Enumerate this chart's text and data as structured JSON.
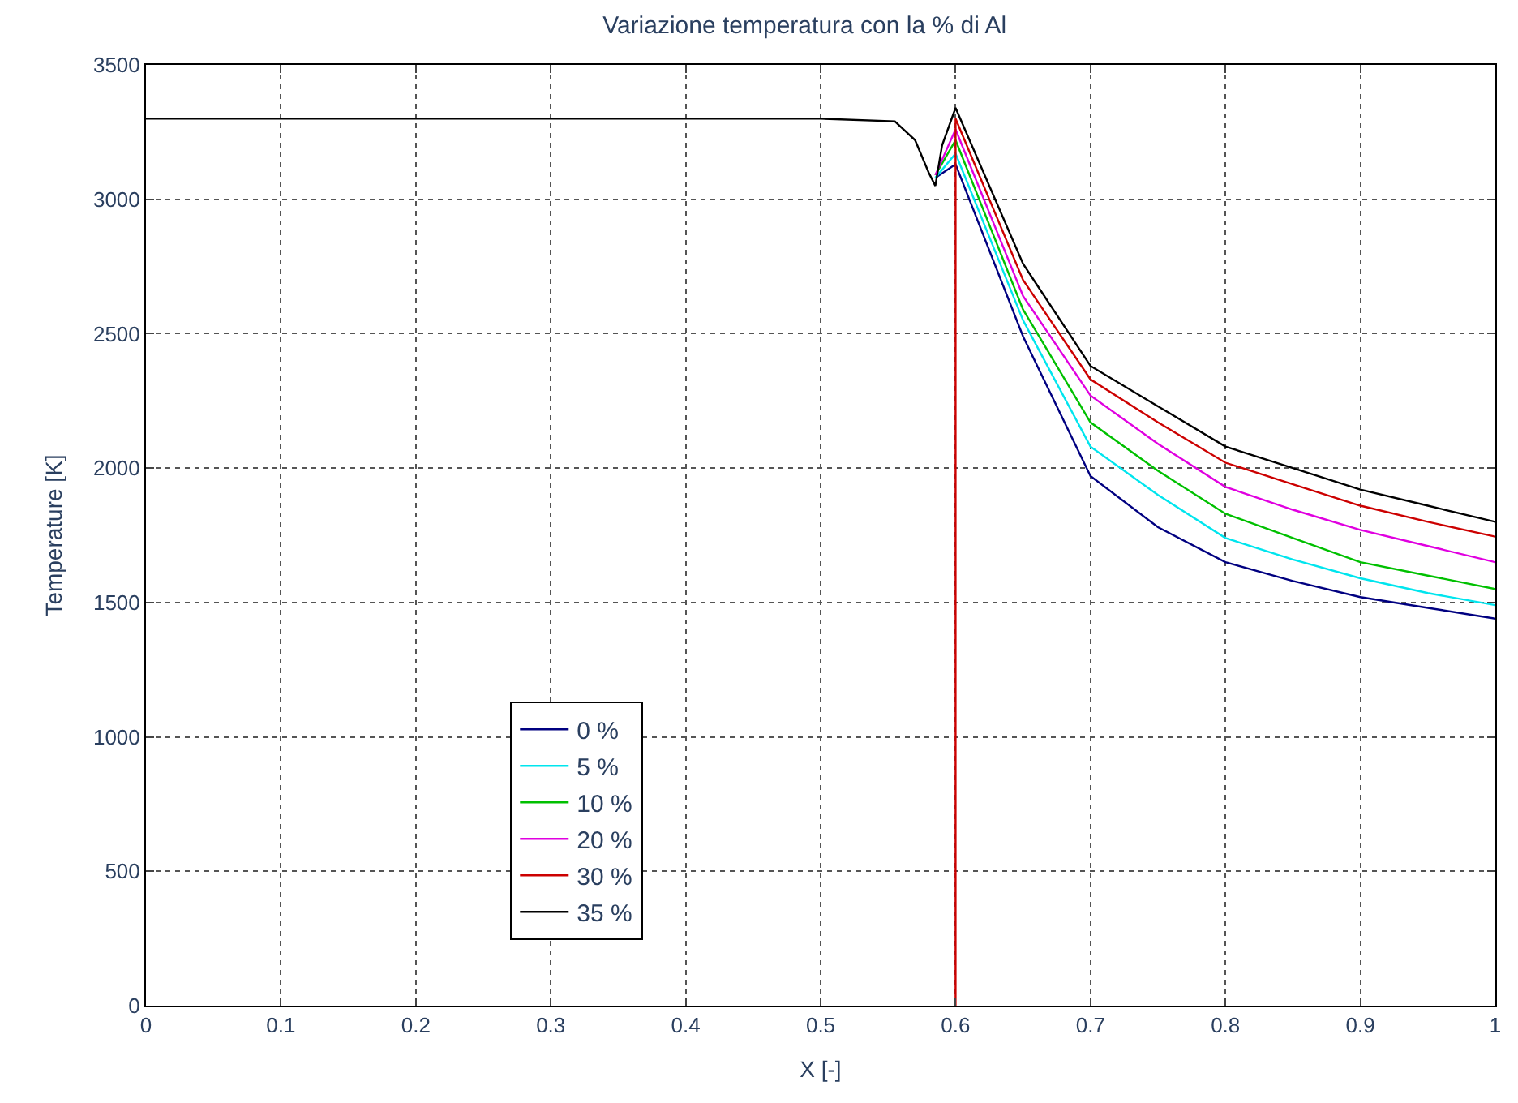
{
  "chart_data": {
    "type": "line",
    "title": "Variazione temperatura con la % di Al",
    "xlabel": "X [-]",
    "ylabel": "Temperature [K]",
    "xlim": [
      0,
      1
    ],
    "ylim": [
      0,
      3500
    ],
    "xticks": [
      0,
      0.1,
      0.2,
      0.3,
      0.4,
      0.5,
      0.6,
      0.7,
      0.8,
      0.9,
      1
    ],
    "yticks": [
      0,
      500,
      1000,
      1500,
      2000,
      2500,
      3000,
      3500
    ],
    "grid": true,
    "legend": "bottom left",
    "line_style": "solid",
    "series": [
      {
        "name": "0 %",
        "color": "#000080",
        "x": [
          0.585,
          0.6,
          0.65,
          0.7,
          0.75,
          0.8,
          0.85,
          0.9,
          0.95,
          1
        ],
        "values": [
          3080,
          3130,
          2490,
          1970,
          1780,
          1650,
          1580,
          1520,
          1480,
          1440
        ]
      },
      {
        "name": "5 %",
        "color": "#00e5ee",
        "x": [
          0.585,
          0.6,
          0.65,
          0.7,
          0.75,
          0.8,
          0.85,
          0.9,
          0.95,
          1
        ],
        "values": [
          3080,
          3170,
          2550,
          2080,
          1900,
          1740,
          1660,
          1590,
          1535,
          1490
        ]
      },
      {
        "name": "10 %",
        "color": "#00c000",
        "x": [
          0.585,
          0.6,
          0.65,
          0.7,
          0.75,
          0.8,
          0.85,
          0.9,
          0.95,
          1
        ],
        "values": [
          3090,
          3220,
          2590,
          2170,
          1990,
          1830,
          1740,
          1650,
          1600,
          1550
        ]
      },
      {
        "name": "20 %",
        "color": "#e000e0",
        "x": [
          0.585,
          0.6,
          0.65,
          0.7,
          0.75,
          0.8,
          0.85,
          0.9,
          0.95,
          1
        ],
        "values": [
          3090,
          3260,
          2640,
          2270,
          2090,
          1930,
          1845,
          1770,
          1710,
          1650
        ]
      },
      {
        "name": "30 %",
        "color": "#cc0000",
        "x": [
          0.6,
          0.6,
          0.65,
          0.7,
          0.75,
          0.8,
          0.85,
          0.9,
          0.95,
          1
        ],
        "values": [
          0,
          3300,
          2700,
          2330,
          2170,
          2020,
          1940,
          1860,
          1800,
          1745
        ]
      },
      {
        "name": "35 %",
        "color": "#000000",
        "x": [
          0,
          0.5,
          0.555,
          0.57,
          0.58,
          0.585,
          0.59,
          0.6,
          0.65,
          0.7,
          0.75,
          0.8,
          0.85,
          0.9,
          0.95,
          1
        ],
        "values": [
          3300,
          3300,
          3290,
          3220,
          3100,
          3050,
          3200,
          3340,
          2760,
          2380,
          2230,
          2080,
          2000,
          1920,
          1860,
          1800
        ]
      }
    ]
  }
}
